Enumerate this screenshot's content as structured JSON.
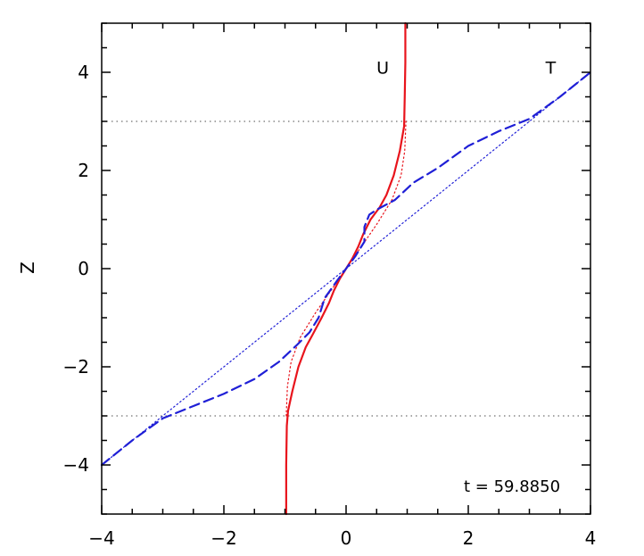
{
  "chart_data": {
    "type": "line",
    "ylabel": "Z",
    "xlim": [
      -4,
      4
    ],
    "ylim": [
      -5,
      5
    ],
    "x_ticks": [
      "−4",
      "−2",
      "0",
      "2",
      "4"
    ],
    "y_ticks": [
      "−4",
      "−2",
      "0",
      "2",
      "4"
    ],
    "grid": false,
    "time_label": "t  =  59.8850",
    "reference_lines": [
      {
        "type": "horizontal",
        "y": 3,
        "style": "dotted",
        "color": "#888888"
      },
      {
        "type": "horizontal",
        "y": -3,
        "style": "dotted",
        "color": "#888888"
      }
    ],
    "series": [
      {
        "name": "U",
        "color": "#e8141c",
        "style": "solid",
        "points": [
          [
            -0.98,
            -5.0
          ],
          [
            -0.98,
            -4.0
          ],
          [
            -0.97,
            -3.2
          ],
          [
            -0.95,
            -2.9
          ],
          [
            -0.88,
            -2.5
          ],
          [
            -0.78,
            -2.0
          ],
          [
            -0.66,
            -1.6
          ],
          [
            -0.55,
            -1.35
          ],
          [
            -0.4,
            -1.0
          ],
          [
            -0.28,
            -0.7
          ],
          [
            -0.2,
            -0.45
          ],
          [
            -0.1,
            -0.2
          ],
          [
            0.0,
            0.0
          ],
          [
            0.1,
            0.2
          ],
          [
            0.2,
            0.45
          ],
          [
            0.28,
            0.7
          ],
          [
            0.4,
            1.0
          ],
          [
            0.55,
            1.25
          ],
          [
            0.66,
            1.5
          ],
          [
            0.78,
            1.9
          ],
          [
            0.88,
            2.4
          ],
          [
            0.95,
            2.9
          ],
          [
            0.96,
            3.5
          ],
          [
            0.97,
            4.2
          ],
          [
            0.97,
            5.0
          ]
        ]
      },
      {
        "name": "T",
        "color": "#1f1fd6",
        "style": "dashed",
        "points": [
          [
            -4.0,
            -4.0
          ],
          [
            -3.5,
            -3.5
          ],
          [
            -3.0,
            -3.05
          ],
          [
            -2.5,
            -2.8
          ],
          [
            -2.0,
            -2.55
          ],
          [
            -1.5,
            -2.25
          ],
          [
            -1.1,
            -1.9
          ],
          [
            -0.8,
            -1.55
          ],
          [
            -0.6,
            -1.3
          ],
          [
            -0.45,
            -1.0
          ],
          [
            -0.35,
            -0.6
          ],
          [
            -0.15,
            -0.25
          ],
          [
            0.0,
            0.0
          ],
          [
            0.15,
            0.25
          ],
          [
            0.3,
            0.55
          ],
          [
            0.3,
            0.85
          ],
          [
            0.38,
            1.1
          ],
          [
            0.5,
            1.2
          ],
          [
            0.8,
            1.4
          ],
          [
            1.1,
            1.75
          ],
          [
            1.5,
            2.05
          ],
          [
            2.0,
            2.5
          ],
          [
            2.5,
            2.8
          ],
          [
            3.0,
            3.05
          ],
          [
            3.5,
            3.5
          ],
          [
            4.0,
            4.0
          ]
        ]
      },
      {
        "color": "#e8141c",
        "style": "dotted",
        "points": [
          [
            -0.98,
            -3.0
          ],
          [
            -0.96,
            -2.4
          ],
          [
            -0.9,
            -1.9
          ],
          [
            -0.75,
            -1.4
          ],
          [
            -0.5,
            -0.9
          ],
          [
            -0.25,
            -0.45
          ],
          [
            0.0,
            0.0
          ],
          [
            0.25,
            0.45
          ],
          [
            0.5,
            0.9
          ],
          [
            0.75,
            1.4
          ],
          [
            0.9,
            1.9
          ],
          [
            0.96,
            2.4
          ],
          [
            0.98,
            3.0
          ]
        ]
      },
      {
        "color": "#1f1fd6",
        "style": "dotted",
        "points": [
          [
            -4.0,
            -4.0
          ],
          [
            4.0,
            4.0
          ]
        ]
      }
    ],
    "series_labels": [
      {
        "text": "U",
        "x": 0.6,
        "y": 4.1
      },
      {
        "text": "T",
        "x": 3.35,
        "y": 4.1
      }
    ]
  }
}
